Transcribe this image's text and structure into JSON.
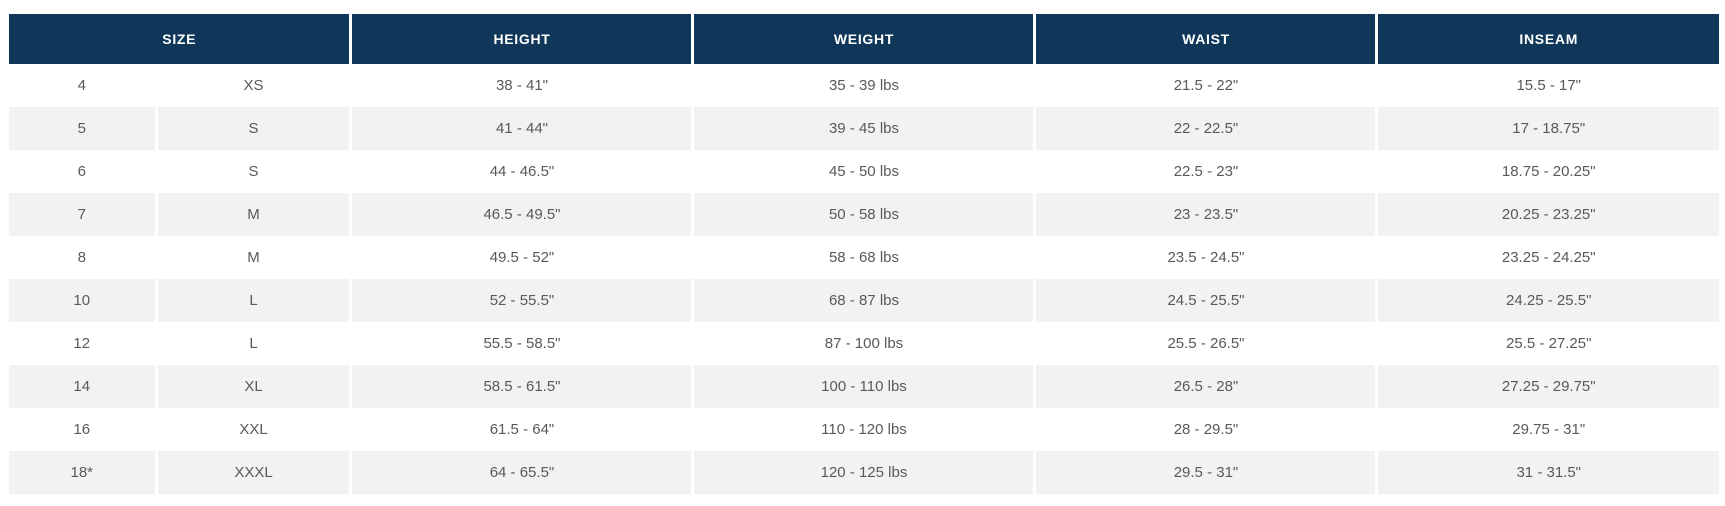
{
  "colors": {
    "header_bg": "#10375a",
    "header_text": "#ffffff",
    "row_bg": "#ffffff",
    "row_alt_bg": "#f2f2f2",
    "cell_text": "#58595b"
  },
  "table": {
    "name": "size-chart",
    "columns": [
      {
        "label": "SIZE",
        "colspan": 2
      },
      {
        "label": "HEIGHT",
        "colspan": 1
      },
      {
        "label": "WEIGHT",
        "colspan": 1
      },
      {
        "label": "WAIST",
        "colspan": 1
      },
      {
        "label": "INSEAM",
        "colspan": 1
      }
    ],
    "rows": [
      [
        "4",
        "XS",
        "38 - 41\"",
        "35 - 39 lbs",
        "21.5 - 22\"",
        "15.5 - 17\""
      ],
      [
        "5",
        "S",
        "41 - 44\"",
        "39 - 45 lbs",
        "22 - 22.5\"",
        "17 - 18.75\""
      ],
      [
        "6",
        "S",
        "44 - 46.5\"",
        "45 - 50 lbs",
        "22.5 - 23\"",
        "18.75 - 20.25\""
      ],
      [
        "7",
        "M",
        "46.5 - 49.5\"",
        "50 - 58 lbs",
        "23 - 23.5\"",
        "20.25 - 23.25\""
      ],
      [
        "8",
        "M",
        "49.5 - 52\"",
        "58 - 68 lbs",
        "23.5 - 24.5\"",
        "23.25 - 24.25\""
      ],
      [
        "10",
        "L",
        "52 - 55.5\"",
        "68 - 87 lbs",
        "24.5 - 25.5\"",
        "24.25 - 25.5\""
      ],
      [
        "12",
        "L",
        "55.5 - 58.5\"",
        "87 - 100 lbs",
        "25.5 - 26.5\"",
        "25.5 - 27.25\""
      ],
      [
        "14",
        "XL",
        "58.5 - 61.5\"",
        "100 - 110 lbs",
        "26.5 - 28\"",
        "27.25 - 29.75\""
      ],
      [
        "16",
        "XXL",
        "61.5 - 64\"",
        "110 - 120 lbs",
        "28 - 29.5\"",
        "29.75 - 31\""
      ],
      [
        "18*",
        "XXXL",
        "64 - 65.5\"",
        "120 - 125 lbs",
        "29.5 - 31\"",
        "31 - 31.5\""
      ]
    ]
  }
}
